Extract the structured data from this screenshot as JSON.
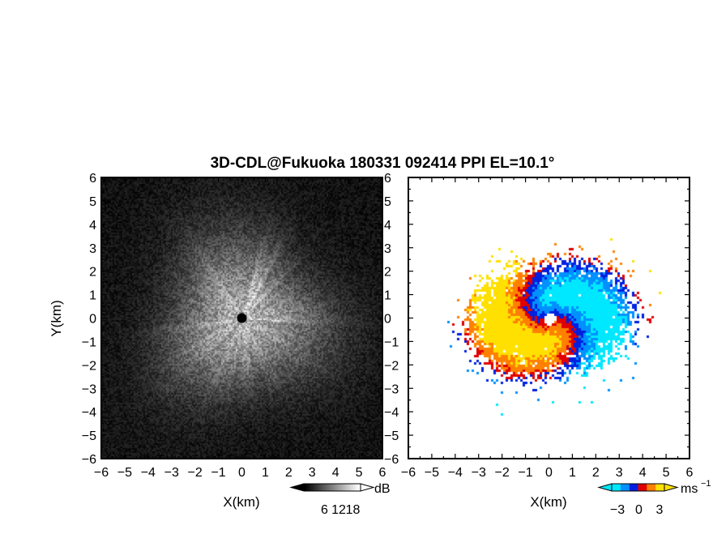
{
  "title": "3D-CDL@Fukuoka 180331 092414 PPI EL=10.1°",
  "chart_data": [
    {
      "type": "heatmap",
      "name": "reflectivity",
      "xlabel": "X(km)",
      "ylabel": "Y(km)",
      "xlim": [
        -6,
        6
      ],
      "ylim": [
        -6,
        6
      ],
      "xticks": [
        "−6",
        "−5",
        "−4",
        "−3",
        "−2",
        "−1",
        "0",
        "1",
        "2",
        "3",
        "4",
        "5",
        "6"
      ],
      "yticks": [
        "−6",
        "−5",
        "−4",
        "−3",
        "−2",
        "−1",
        "0",
        "1",
        "2",
        "3",
        "4",
        "5",
        "6"
      ],
      "colorbar": {
        "unit": "dB",
        "ticks": [
          "6",
          "12",
          "18"
        ],
        "range": [
          0,
          24
        ]
      },
      "colormap": [
        "#000000",
        "#ffffff"
      ],
      "grid": false
    },
    {
      "type": "heatmap",
      "name": "doppler-velocity",
      "xlabel": "X(km)",
      "xlim": [
        -6,
        6
      ],
      "ylim": [
        -6,
        6
      ],
      "xticks": [
        "−6",
        "−5",
        "−4",
        "−3",
        "−2",
        "−1",
        "0",
        "1",
        "2",
        "3",
        "4",
        "5",
        "6"
      ],
      "yticks": [
        "−6",
        "−5",
        "−4",
        "−3",
        "−2",
        "−1",
        "0",
        "1",
        "2",
        "3",
        "4",
        "5",
        "6"
      ],
      "colorbar": {
        "unit": "ms",
        "unit_exp": "−1",
        "ticks": [
          "−3",
          "0",
          "3"
        ],
        "range": [
          -5,
          5
        ]
      },
      "colormap": [
        "#00e8ff",
        "#0090ff",
        "#0020e0",
        "#e00000",
        "#ff8000",
        "#ffe000"
      ],
      "grid": false
    }
  ]
}
